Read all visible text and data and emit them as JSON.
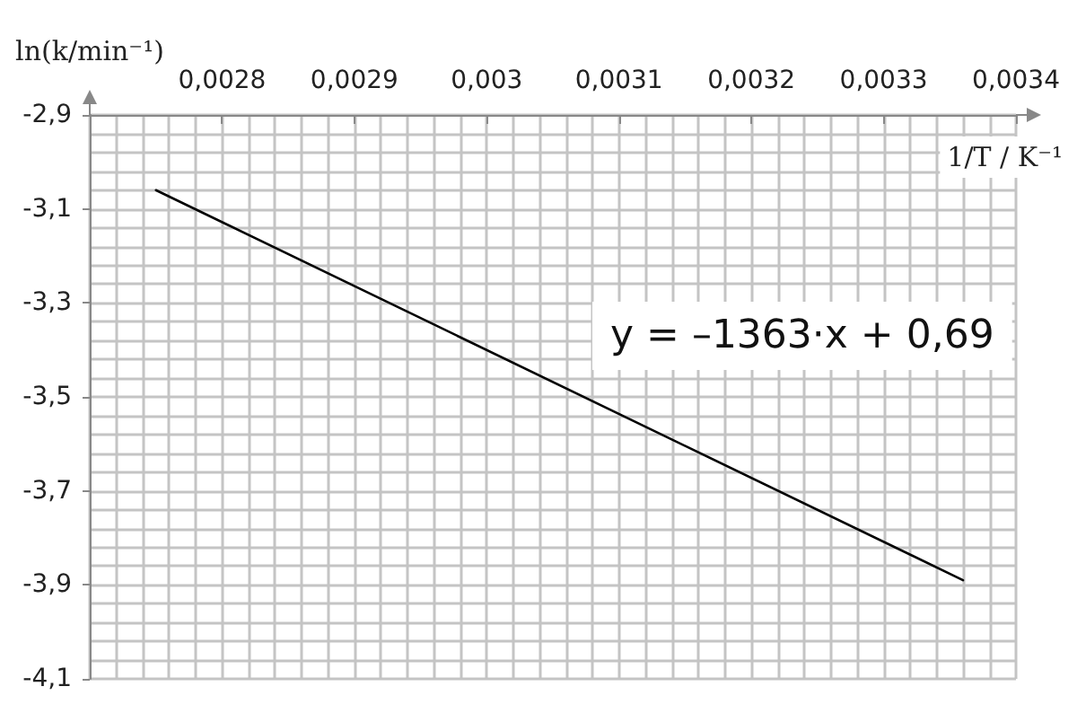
{
  "chart_data": {
    "type": "line",
    "xlabel": "1/T / K⁻¹",
    "ylabel": "ln(k/min⁻¹)",
    "x": [
      0.00275,
      0.00336
    ],
    "series": [
      {
        "color": "#000000",
        "values": [
          -3.06,
          -3.89
        ]
      }
    ],
    "xlim": [
      0.0027,
      0.0034
    ],
    "xticks": [
      {
        "value": 0.0028,
        "label": "0,0028"
      },
      {
        "value": 0.0029,
        "label": "0,0029"
      },
      {
        "value": 0.003,
        "label": "0,003"
      },
      {
        "value": 0.0031,
        "label": "0,0031"
      },
      {
        "value": 0.0032,
        "label": "0,0032"
      },
      {
        "value": 0.0033,
        "label": "0,0033"
      },
      {
        "value": 0.0034,
        "label": "0,0034"
      }
    ],
    "ylim": [
      -4.1,
      -2.9
    ],
    "yticks": [
      {
        "value": -4.1,
        "label": "-4,1"
      },
      {
        "value": -3.9,
        "label": "-3,9"
      },
      {
        "value": -3.7,
        "label": "-3,7"
      },
      {
        "value": -3.5,
        "label": "-3,5"
      },
      {
        "value": -3.3,
        "label": "-3,3"
      },
      {
        "value": -3.1,
        "label": "-3,1"
      },
      {
        "value": -2.9,
        "label": "-2,9"
      }
    ],
    "grid": true,
    "marker": "none",
    "line_style": "solid",
    "annotations": [
      "y = –1363·x + 0,69"
    ]
  }
}
